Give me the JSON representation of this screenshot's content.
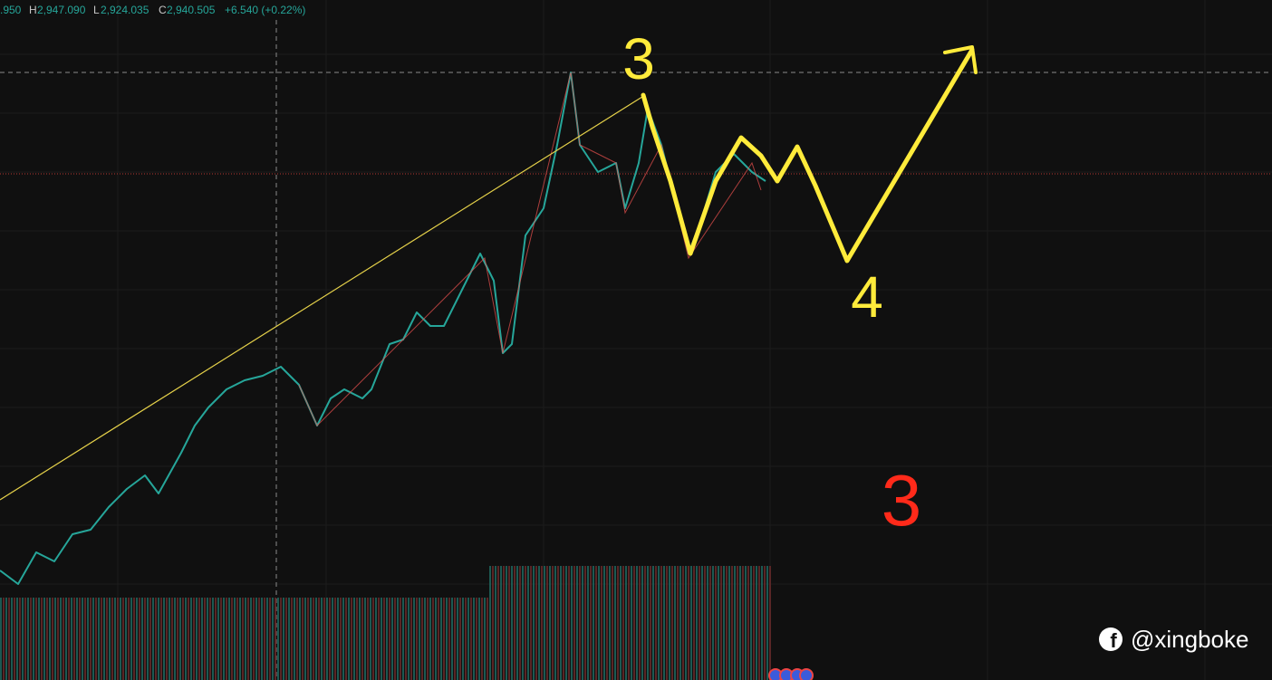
{
  "ohlc_bar": {
    "open_fragment": ".950",
    "high_label": "H",
    "high": "2,947.090",
    "low_label": "L",
    "low": "2,924.035",
    "close_label": "C",
    "close": "2,940.505",
    "change": "+6.540 (+0.22%)"
  },
  "annotations": {
    "wave_3": "3",
    "wave_4": "4",
    "red_mark": "3"
  },
  "watermark": "@xingboke"
}
